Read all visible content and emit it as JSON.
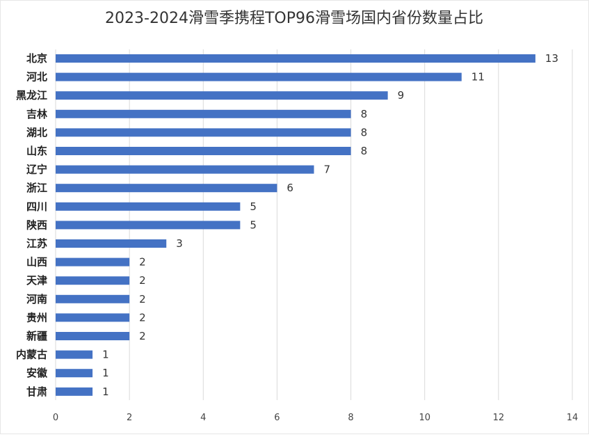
{
  "chart_data": {
    "type": "bar",
    "orientation": "horizontal",
    "title": "2023-2024滑雪季携程TOP96滑雪场国内省份数量占比",
    "categories": [
      "北京",
      "河北",
      "黑龙江",
      "吉林",
      "湖北",
      "山东",
      "辽宁",
      "浙江",
      "四川",
      "陕西",
      "江苏",
      "山西",
      "天津",
      "河南",
      "贵州",
      "新疆",
      "内蒙古",
      "安徽",
      "甘肃"
    ],
    "values": [
      13,
      11,
      9,
      8,
      8,
      8,
      7,
      6,
      5,
      5,
      3,
      2,
      2,
      2,
      2,
      2,
      1,
      1,
      1
    ],
    "xlim": [
      0,
      14
    ],
    "xticks": [
      0,
      2,
      4,
      6,
      8,
      10,
      12,
      14
    ],
    "grid": true,
    "legend": "none",
    "bar_color": "#4472c4"
  }
}
